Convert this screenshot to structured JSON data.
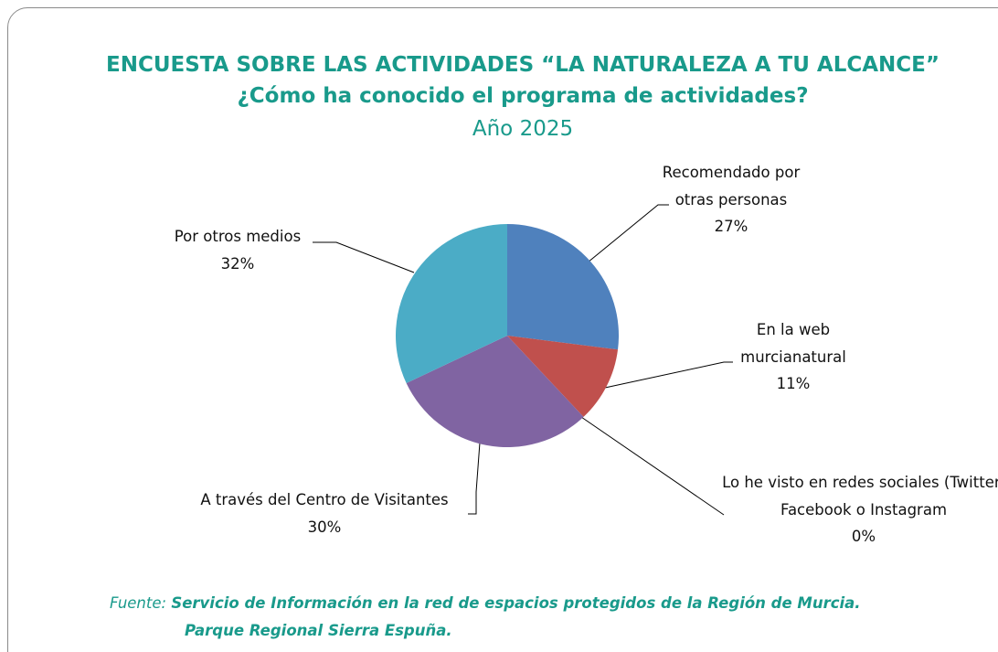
{
  "chart_data": {
    "type": "pie",
    "title": "ENCUESTA SOBRE LAS ACTIVIDADES “LA NATURALEZA A TU ALCANCE”",
    "subtitle": "¿Cómo ha conocido el programa de actividades?",
    "subtitle2": "Año 2025",
    "categories": [
      "Recomendado por otras personas",
      "En la web murcianatural",
      "Lo he visto en redes sociales (Twitter, Facebook o Instagram",
      "A través del Centro de Visitantes",
      "Por otros medios"
    ],
    "values": [
      27,
      11,
      0,
      30,
      32
    ],
    "value_labels": [
      "27%",
      "11%",
      "0%",
      "30%",
      "32%"
    ],
    "colors": [
      "#4f81bd",
      "#c0504d",
      "#9bbb59",
      "#8064a2",
      "#4bacc6"
    ],
    "source_label": "Fuente:",
    "source": [
      "Servicio de Información en la red de espacios protegidos de la Región de Murcia.",
      "Parque Regional Sierra Espuña."
    ]
  }
}
